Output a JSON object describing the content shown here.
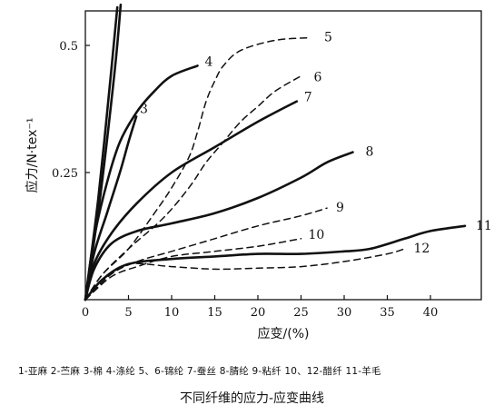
{
  "chart_data": {
    "type": "line",
    "title": "",
    "xlabel": "应变/(%)",
    "ylabel": "应力/N·tex⁻¹",
    "xlim": [
      0,
      46
    ],
    "ylim": [
      0,
      0.6
    ],
    "x_ticks": [
      0,
      5,
      10,
      15,
      20,
      25,
      30,
      35,
      40
    ],
    "x_tick_labels": [
      "0",
      "5",
      "10",
      "15",
      "20",
      "25",
      "30",
      "35",
      "40"
    ],
    "y_ticks": [
      0.25,
      0.5
    ],
    "y_tick_labels": [
      "0.25",
      "0.5"
    ],
    "grid": false,
    "series": [
      {
        "name": "1",
        "style": "solid",
        "points": [
          [
            0,
            0
          ],
          [
            1.5,
            0.2
          ],
          [
            3.0,
            0.45
          ],
          [
            3.7,
            0.575
          ]
        ]
      },
      {
        "name": "2",
        "style": "solid",
        "points": [
          [
            0,
            0
          ],
          [
            1.7,
            0.2
          ],
          [
            3.4,
            0.45
          ],
          [
            4.1,
            0.58
          ]
        ]
      },
      {
        "name": "3",
        "style": "solid",
        "points": [
          [
            0,
            0
          ],
          [
            1.0,
            0.09
          ],
          [
            2.5,
            0.17
          ],
          [
            4.0,
            0.25
          ],
          [
            5.0,
            0.31
          ],
          [
            5.9,
            0.36
          ]
        ]
      },
      {
        "name": "4",
        "style": "solid",
        "points": [
          [
            0,
            0
          ],
          [
            1.0,
            0.12
          ],
          [
            2.5,
            0.23
          ],
          [
            4.0,
            0.31
          ],
          [
            6.0,
            0.37
          ],
          [
            8.0,
            0.41
          ],
          [
            10.0,
            0.44
          ],
          [
            13.0,
            0.46
          ]
        ]
      },
      {
        "name": "5",
        "style": "dashed",
        "points": [
          [
            0,
            0
          ],
          [
            2,
            0.05
          ],
          [
            5,
            0.1
          ],
          [
            8,
            0.17
          ],
          [
            10,
            0.22
          ],
          [
            12,
            0.28
          ],
          [
            13,
            0.33
          ],
          [
            14,
            0.39
          ],
          [
            15,
            0.43
          ],
          [
            16,
            0.46
          ],
          [
            18,
            0.49
          ],
          [
            22,
            0.51
          ],
          [
            26,
            0.515
          ]
        ]
      },
      {
        "name": "6",
        "style": "dashed",
        "points": [
          [
            0,
            0
          ],
          [
            2,
            0.05
          ],
          [
            5,
            0.1
          ],
          [
            9,
            0.16
          ],
          [
            12,
            0.22
          ],
          [
            14,
            0.27
          ],
          [
            16,
            0.31
          ],
          [
            18,
            0.35
          ],
          [
            20,
            0.38
          ],
          [
            22,
            0.41
          ],
          [
            25,
            0.44
          ]
        ]
      },
      {
        "name": "7",
        "style": "solid",
        "points": [
          [
            0,
            0
          ],
          [
            1,
            0.07
          ],
          [
            3,
            0.13
          ],
          [
            6,
            0.19
          ],
          [
            10,
            0.25
          ],
          [
            15,
            0.3
          ],
          [
            20,
            0.35
          ],
          [
            24.5,
            0.39
          ]
        ]
      },
      {
        "name": "8",
        "style": "solid",
        "points": [
          [
            0,
            0
          ],
          [
            1,
            0.06
          ],
          [
            3,
            0.11
          ],
          [
            6,
            0.135
          ],
          [
            10,
            0.15
          ],
          [
            15,
            0.17
          ],
          [
            20,
            0.2
          ],
          [
            25,
            0.24
          ],
          [
            28,
            0.27
          ],
          [
            31,
            0.29
          ]
        ]
      },
      {
        "name": "9",
        "style": "dashed",
        "points": [
          [
            0,
            0
          ],
          [
            3,
            0.05
          ],
          [
            6,
            0.075
          ],
          [
            10,
            0.095
          ],
          [
            15,
            0.12
          ],
          [
            20,
            0.145
          ],
          [
            25,
            0.165
          ],
          [
            28,
            0.18
          ]
        ]
      },
      {
        "name": "10",
        "style": "dashed",
        "points": [
          [
            0,
            0
          ],
          [
            3,
            0.045
          ],
          [
            6,
            0.065
          ],
          [
            10,
            0.085
          ],
          [
            15,
            0.095
          ],
          [
            20,
            0.105
          ],
          [
            25,
            0.12
          ]
        ]
      },
      {
        "name": "11",
        "style": "solid",
        "points": [
          [
            0,
            0
          ],
          [
            2,
            0.04
          ],
          [
            5,
            0.07
          ],
          [
            10,
            0.08
          ],
          [
            15,
            0.085
          ],
          [
            20,
            0.09
          ],
          [
            25,
            0.09
          ],
          [
            30,
            0.095
          ],
          [
            33,
            0.1
          ],
          [
            37,
            0.12
          ],
          [
            40,
            0.135
          ],
          [
            44,
            0.145
          ]
        ]
      },
      {
        "name": "12",
        "style": "dashed",
        "points": [
          [
            0,
            0
          ],
          [
            2,
            0.04
          ],
          [
            5,
            0.07
          ],
          [
            10,
            0.065
          ],
          [
            15,
            0.06
          ],
          [
            20,
            0.062
          ],
          [
            25,
            0.065
          ],
          [
            30,
            0.075
          ],
          [
            35,
            0.09
          ],
          [
            37,
            0.1
          ]
        ]
      }
    ]
  },
  "legend_text": "1-亚麻  2-苎麻  3-棉  4-涤纶  5、6-锦纶 7-蚕丝  8-腈纶  9-粘纤  10、12-醋纤  11-羊毛",
  "caption": "不同纤维的应力-应变曲线"
}
